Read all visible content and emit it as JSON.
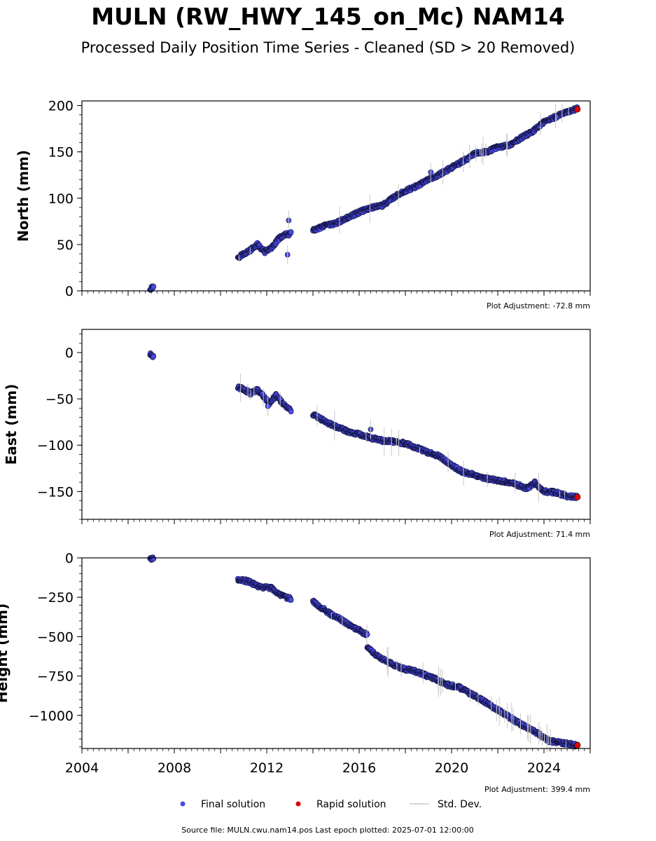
{
  "chart_data": {
    "type": "scatter",
    "title": "MULN (RW_HWY_145_on_Mc) NAM14",
    "subtitle": "Processed Daily Position Time Series - Cleaned (SD > 20 Removed)",
    "xlim": [
      2004,
      2026
    ],
    "x_ticks": [
      2004,
      2008,
      2012,
      2016,
      2020,
      2024
    ],
    "x_tick_labels": [
      "2004",
      "2008",
      "2012",
      "2016",
      "2020",
      "2024"
    ],
    "colors": {
      "final": "#4a4ae6",
      "final_edge": "#10103a",
      "rapid": "#e60000",
      "stddev": "#c8c8c8"
    },
    "legend": [
      {
        "name": "Final solution",
        "marker": "dot",
        "color": "#4a4ae6"
      },
      {
        "name": "Rapid solution",
        "marker": "dot",
        "color": "#e60000"
      },
      {
        "name": "Std. Dev.",
        "marker": "line",
        "color": "#c8c8c8"
      }
    ],
    "legend_placement": "bottom-center",
    "footer": "Source file: MULN.cwu.nam14.pos  Last epoch plotted: 2025-07-01 12:00:00",
    "panels": [
      {
        "ylabel": "North (mm)",
        "ylim": [
          0,
          205
        ],
        "y_ticks": [
          0,
          50,
          100,
          150,
          200
        ],
        "y_tick_labels": [
          "0",
          "50",
          "100",
          "150",
          "200"
        ],
        "adjustment": "Plot Adjustment: -72.8 mm",
        "segments": [
          {
            "x": [
              2006.95,
              2007.1
            ],
            "y": [
              2,
              5
            ]
          },
          {
            "x": [
              2010.75,
              2011.0,
              2011.3,
              2011.6,
              2011.9,
              2012.2,
              2012.5,
              2012.75,
              2013.05
            ],
            "y": [
              36,
              40,
              44,
              50,
              42,
              46,
              56,
              60,
              62
            ]
          },
          {
            "x": [
              2014.0,
              2014.5,
              2015.0,
              2015.5,
              2016.0,
              2016.5,
              2017.0,
              2017.5,
              2018.0,
              2018.5,
              2019.0,
              2019.5,
              2020.0,
              2020.5,
              2021.0,
              2021.5,
              2022.0,
              2022.5,
              2023.0,
              2023.5,
              2024.0,
              2024.5,
              2025.0,
              2025.45
            ],
            "y": [
              65,
              70,
              73,
              79,
              85,
              90,
              92,
              101,
              108,
              113,
              120,
              126,
              133,
              140,
              148,
              150,
              155,
              157,
              165,
              172,
              182,
              188,
              193,
              197
            ]
          }
        ],
        "outliers": [
          {
            "x": 2012.95,
            "y": 76
          },
          {
            "x": 2012.9,
            "y": 39
          },
          {
            "x": 2019.1,
            "y": 128
          }
        ],
        "rapid": [
          {
            "x": 2025.45,
            "y": 196
          }
        ]
      },
      {
        "ylabel": "East (mm)",
        "ylim": [
          -180,
          25
        ],
        "y_ticks": [
          -150,
          -100,
          -50,
          0
        ],
        "y_tick_labels": [
          "−150",
          "−100",
          "−50",
          "0"
        ],
        "adjustment": "Plot Adjustment: 71.4 mm",
        "segments": [
          {
            "x": [
              2006.95,
              2007.1
            ],
            "y": [
              -2,
              -4
            ]
          },
          {
            "x": [
              2010.75,
              2011.0,
              2011.3,
              2011.6,
              2011.9,
              2012.1,
              2012.4,
              2012.7,
              2013.05
            ],
            "y": [
              -37,
              -40,
              -44,
              -40,
              -48,
              -55,
              -46,
              -55,
              -63
            ]
          },
          {
            "x": [
              2014.0,
              2014.5,
              2015.0,
              2015.5,
              2016.0,
              2016.5,
              2017.0,
              2017.5,
              2018.0,
              2018.5,
              2019.0,
              2019.5,
              2020.0,
              2020.5,
              2021.0,
              2021.5,
              2022.0,
              2022.5,
              2023.0,
              2023.3,
              2023.6,
              2024.0,
              2024.5,
              2025.0,
              2025.45
            ],
            "y": [
              -67,
              -74,
              -80,
              -85,
              -88,
              -92,
              -95,
              -96,
              -98,
              -103,
              -108,
              -112,
              -122,
              -129,
              -132,
              -136,
              -138,
              -140,
              -144,
              -147,
              -140,
              -150,
              -151,
              -155,
              -156
            ]
          }
        ],
        "outliers": [
          {
            "x": 2016.5,
            "y": -83
          },
          {
            "x": 2012.05,
            "y": -58
          }
        ],
        "rapid": [
          {
            "x": 2025.45,
            "y": -156
          }
        ]
      },
      {
        "ylabel": "Height (mm)",
        "ylim": [
          -1210,
          0
        ],
        "y_ticks": [
          -1000,
          -750,
          -500,
          -250,
          0
        ],
        "y_tick_labels": [
          "−1000",
          "−750",
          "−500",
          "−250",
          "0"
        ],
        "adjustment": "Plot Adjustment: 399.4 mm",
        "segments": [
          {
            "x": [
              2006.95,
              2007.1
            ],
            "y": [
              -2,
              -8
            ]
          },
          {
            "x": [
              2010.75,
              2011.2,
              2011.7,
              2012.2,
              2012.6,
              2013.05
            ],
            "y": [
              -135,
              -150,
              -185,
              -190,
              -240,
              -260
            ]
          },
          {
            "x": [
              2014.0,
              2014.4,
              2014.8,
              2015.2,
              2015.6,
              2016.0,
              2016.35
            ],
            "y": [
              -275,
              -320,
              -360,
              -390,
              -430,
              -460,
              -490
            ]
          },
          {
            "x": [
              2016.35,
              2016.8,
              2017.3,
              2017.8,
              2018.3,
              2018.8,
              2019.3,
              2019.8,
              2020.3,
              2020.8,
              2021.3,
              2021.8,
              2022.3,
              2022.8,
              2023.3,
              2023.8,
              2024.2,
              2024.6,
              2025.0,
              2025.45
            ],
            "y": [
              -570,
              -625,
              -665,
              -700,
              -715,
              -740,
              -770,
              -805,
              -820,
              -860,
              -900,
              -950,
              -990,
              -1040,
              -1080,
              -1120,
              -1160,
              -1170,
              -1180,
              -1190
            ]
          }
        ],
        "outliers": [],
        "rapid": [
          {
            "x": 2025.45,
            "y": -1190
          }
        ]
      }
    ]
  }
}
